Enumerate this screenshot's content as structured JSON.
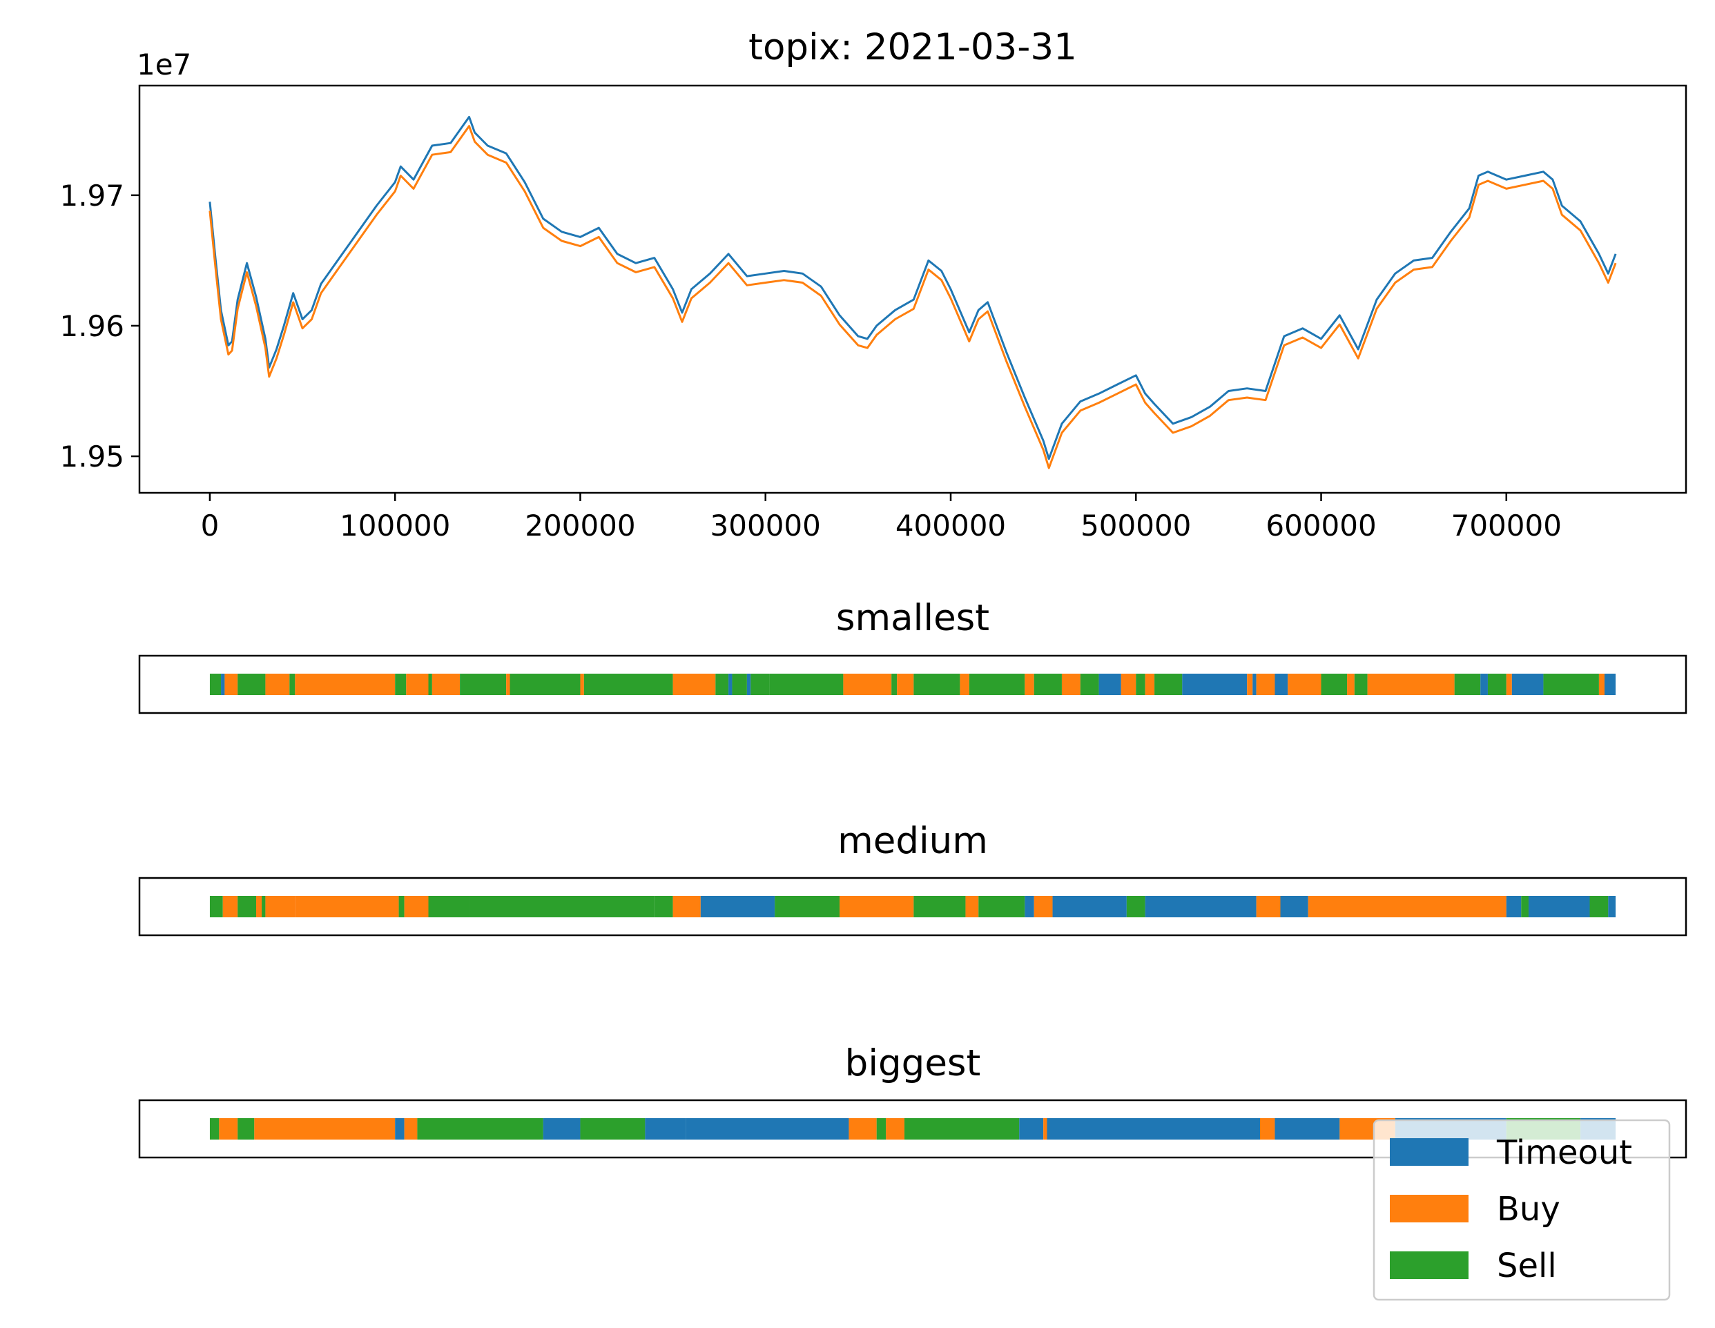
{
  "colors": {
    "timeout": "#1f77b4",
    "buy": "#ff7f0e",
    "sell": "#2ca02c"
  },
  "chart_data": [
    {
      "type": "line",
      "title": "topix: 2021-03-31",
      "offset_label": "1e7",
      "xlim": [
        -38000,
        797000
      ],
      "ylim": [
        1.9472,
        1.9784
      ],
      "xticks": [
        0,
        100000,
        200000,
        300000,
        400000,
        500000,
        600000,
        700000
      ],
      "xtick_labels": [
        "0",
        "100000",
        "200000",
        "300000",
        "400000",
        "500000",
        "600000",
        "700000"
      ],
      "yticks": [
        1.95,
        1.96,
        1.97
      ],
      "ytick_labels": [
        "1.95",
        "1.96",
        "1.97"
      ],
      "series": [
        {
          "color_key": "timeout",
          "x": [
            0,
            3000,
            6000,
            10000,
            12000,
            15000,
            20000,
            25000,
            30000,
            32000,
            36000,
            40000,
            45000,
            50000,
            55000,
            60000,
            70000,
            80000,
            90000,
            100000,
            103000,
            110000,
            115000,
            120000,
            130000,
            140000,
            143000,
            150000,
            160000,
            170000,
            180000,
            190000,
            200000,
            210000,
            220000,
            230000,
            240000,
            250000,
            255000,
            260000,
            270000,
            280000,
            290000,
            300000,
            310000,
            320000,
            330000,
            340000,
            350000,
            355000,
            360000,
            370000,
            380000,
            388000,
            395000,
            400000,
            410000,
            415000,
            420000,
            430000,
            440000,
            450000,
            453000,
            460000,
            470000,
            480000,
            490000,
            500000,
            505000,
            510000,
            520000,
            530000,
            540000,
            550000,
            560000,
            570000,
            580000,
            590000,
            600000,
            610000,
            620000,
            630000,
            640000,
            650000,
            660000,
            670000,
            680000,
            685000,
            690000,
            700000,
            710000,
            720000,
            725000,
            730000,
            740000,
            750000,
            755000,
            759000
          ],
          "values": [
            1.9695,
            1.9652,
            1.9612,
            1.9585,
            1.9588,
            1.962,
            1.9648,
            1.9622,
            1.959,
            1.9568,
            1.9582,
            1.96,
            1.9625,
            1.9605,
            1.9612,
            1.9632,
            1.9652,
            1.9672,
            1.9692,
            1.971,
            1.9722,
            1.9712,
            1.9725,
            1.9738,
            1.974,
            1.976,
            1.9748,
            1.9738,
            1.9732,
            1.971,
            1.9682,
            1.9672,
            1.9668,
            1.9675,
            1.9655,
            1.9648,
            1.9652,
            1.9628,
            1.961,
            1.9628,
            1.964,
            1.9655,
            1.9638,
            1.964,
            1.9642,
            1.964,
            1.963,
            1.9608,
            1.9592,
            1.959,
            1.96,
            1.9612,
            1.962,
            1.965,
            1.9642,
            1.9628,
            1.9595,
            1.9612,
            1.9618,
            1.958,
            1.9545,
            1.9512,
            1.9498,
            1.9525,
            1.9542,
            1.9548,
            1.9555,
            1.9562,
            1.9548,
            1.954,
            1.9525,
            1.953,
            1.9538,
            1.955,
            1.9552,
            1.955,
            1.9592,
            1.9598,
            1.959,
            1.9608,
            1.9582,
            1.962,
            1.964,
            1.965,
            1.9652,
            1.9672,
            1.969,
            1.9715,
            1.9718,
            1.9712,
            1.9715,
            1.9718,
            1.9712,
            1.9692,
            1.968,
            1.9655,
            1.964,
            1.9655
          ]
        },
        {
          "color_key": "buy",
          "x": [
            0,
            3000,
            6000,
            10000,
            12000,
            15000,
            20000,
            25000,
            30000,
            32000,
            36000,
            40000,
            45000,
            50000,
            55000,
            60000,
            70000,
            80000,
            90000,
            100000,
            103000,
            110000,
            115000,
            120000,
            130000,
            140000,
            143000,
            150000,
            160000,
            170000,
            180000,
            190000,
            200000,
            210000,
            220000,
            230000,
            240000,
            250000,
            255000,
            260000,
            270000,
            280000,
            290000,
            300000,
            310000,
            320000,
            330000,
            340000,
            350000,
            355000,
            360000,
            370000,
            380000,
            388000,
            395000,
            400000,
            410000,
            415000,
            420000,
            430000,
            440000,
            450000,
            453000,
            460000,
            470000,
            480000,
            490000,
            500000,
            505000,
            510000,
            520000,
            530000,
            540000,
            550000,
            560000,
            570000,
            580000,
            590000,
            600000,
            610000,
            620000,
            630000,
            640000,
            650000,
            660000,
            670000,
            680000,
            685000,
            690000,
            700000,
            710000,
            720000,
            725000,
            730000,
            740000,
            750000,
            755000,
            759000
          ],
          "values": [
            1.9688,
            1.9645,
            1.9605,
            1.9578,
            1.9581,
            1.9613,
            1.9641,
            1.9615,
            1.9583,
            1.9561,
            1.9575,
            1.9593,
            1.9618,
            1.9598,
            1.9605,
            1.9625,
            1.9645,
            1.9665,
            1.9685,
            1.9703,
            1.9715,
            1.9705,
            1.9718,
            1.9731,
            1.9733,
            1.9753,
            1.9741,
            1.9731,
            1.9725,
            1.9703,
            1.9675,
            1.9665,
            1.9661,
            1.9668,
            1.9648,
            1.9641,
            1.9645,
            1.9621,
            1.9603,
            1.9621,
            1.9633,
            1.9648,
            1.9631,
            1.9633,
            1.9635,
            1.9633,
            1.9623,
            1.9601,
            1.9585,
            1.9583,
            1.9593,
            1.9605,
            1.9613,
            1.9643,
            1.9635,
            1.9621,
            1.9588,
            1.9605,
            1.9611,
            1.9573,
            1.9538,
            1.9505,
            1.9491,
            1.9518,
            1.9535,
            1.9541,
            1.9548,
            1.9555,
            1.9541,
            1.9533,
            1.9518,
            1.9523,
            1.9531,
            1.9543,
            1.9545,
            1.9543,
            1.9585,
            1.9591,
            1.9583,
            1.9601,
            1.9575,
            1.9613,
            1.9633,
            1.9643,
            1.9645,
            1.9665,
            1.9683,
            1.9708,
            1.9711,
            1.9705,
            1.9708,
            1.9711,
            1.9705,
            1.9685,
            1.9673,
            1.9648,
            1.9633,
            1.9648
          ]
        }
      ]
    },
    {
      "type": "bar",
      "title": "smallest",
      "xlim": [
        -38000,
        797000
      ],
      "segments": [
        [
          0,
          6000,
          "sell"
        ],
        [
          6000,
          8000,
          "timeout"
        ],
        [
          8000,
          15000,
          "buy"
        ],
        [
          15000,
          30000,
          "sell"
        ],
        [
          30000,
          43000,
          "buy"
        ],
        [
          43000,
          46000,
          "sell"
        ],
        [
          46000,
          100000,
          "buy"
        ],
        [
          100000,
          106000,
          "sell"
        ],
        [
          106000,
          118000,
          "buy"
        ],
        [
          118000,
          120000,
          "sell"
        ],
        [
          120000,
          135000,
          "buy"
        ],
        [
          135000,
          160000,
          "sell"
        ],
        [
          160000,
          162000,
          "buy"
        ],
        [
          162000,
          200000,
          "sell"
        ],
        [
          200000,
          202000,
          "buy"
        ],
        [
          202000,
          250000,
          "sell"
        ],
        [
          250000,
          273000,
          "buy"
        ],
        [
          273000,
          280000,
          "sell"
        ],
        [
          280000,
          282000,
          "timeout"
        ],
        [
          282000,
          290000,
          "sell"
        ],
        [
          290000,
          292000,
          "timeout"
        ],
        [
          292000,
          302000,
          "sell"
        ],
        [
          302000,
          342000,
          "sell"
        ],
        [
          342000,
          368000,
          "buy"
        ],
        [
          368000,
          371000,
          "sell"
        ],
        [
          371000,
          380000,
          "buy"
        ],
        [
          380000,
          405000,
          "sell"
        ],
        [
          405000,
          410000,
          "buy"
        ],
        [
          410000,
          440000,
          "sell"
        ],
        [
          440000,
          445000,
          "buy"
        ],
        [
          445000,
          460000,
          "sell"
        ],
        [
          460000,
          470000,
          "buy"
        ],
        [
          470000,
          480000,
          "sell"
        ],
        [
          480000,
          492000,
          "timeout"
        ],
        [
          492000,
          500000,
          "buy"
        ],
        [
          500000,
          505000,
          "sell"
        ],
        [
          505000,
          510000,
          "buy"
        ],
        [
          510000,
          525000,
          "sell"
        ],
        [
          525000,
          560000,
          "timeout"
        ],
        [
          560000,
          563000,
          "buy"
        ],
        [
          563000,
          565000,
          "timeout"
        ],
        [
          565000,
          575000,
          "buy"
        ],
        [
          575000,
          582000,
          "timeout"
        ],
        [
          582000,
          600000,
          "buy"
        ],
        [
          600000,
          614000,
          "sell"
        ],
        [
          614000,
          618000,
          "buy"
        ],
        [
          618000,
          625000,
          "sell"
        ],
        [
          625000,
          672000,
          "buy"
        ],
        [
          672000,
          686000,
          "sell"
        ],
        [
          686000,
          690000,
          "timeout"
        ],
        [
          690000,
          700000,
          "sell"
        ],
        [
          700000,
          703000,
          "buy"
        ],
        [
          703000,
          720000,
          "timeout"
        ],
        [
          720000,
          750000,
          "sell"
        ],
        [
          750000,
          753000,
          "buy"
        ],
        [
          753000,
          759000,
          "timeout"
        ]
      ]
    },
    {
      "type": "bar",
      "title": "medium",
      "xlim": [
        -38000,
        797000
      ],
      "segments": [
        [
          0,
          7000,
          "sell"
        ],
        [
          7000,
          15000,
          "buy"
        ],
        [
          15000,
          25000,
          "sell"
        ],
        [
          25000,
          28000,
          "buy"
        ],
        [
          28000,
          30000,
          "sell"
        ],
        [
          30000,
          46000,
          "buy"
        ],
        [
          46000,
          102000,
          "buy"
        ],
        [
          102000,
          105000,
          "sell"
        ],
        [
          105000,
          118000,
          "buy"
        ],
        [
          118000,
          140000,
          "sell"
        ],
        [
          140000,
          240000,
          "sell"
        ],
        [
          240000,
          250000,
          "sell"
        ],
        [
          250000,
          265000,
          "buy"
        ],
        [
          265000,
          305000,
          "timeout"
        ],
        [
          305000,
          340000,
          "sell"
        ],
        [
          340000,
          380000,
          "buy"
        ],
        [
          380000,
          408000,
          "sell"
        ],
        [
          408000,
          415000,
          "buy"
        ],
        [
          415000,
          440000,
          "sell"
        ],
        [
          440000,
          445000,
          "timeout"
        ],
        [
          445000,
          455000,
          "buy"
        ],
        [
          455000,
          495000,
          "timeout"
        ],
        [
          495000,
          505000,
          "sell"
        ],
        [
          505000,
          565000,
          "timeout"
        ],
        [
          565000,
          578000,
          "buy"
        ],
        [
          578000,
          593000,
          "timeout"
        ],
        [
          593000,
          700000,
          "buy"
        ],
        [
          700000,
          708000,
          "timeout"
        ],
        [
          708000,
          712000,
          "sell"
        ],
        [
          712000,
          745000,
          "timeout"
        ],
        [
          745000,
          755000,
          "sell"
        ],
        [
          755000,
          759000,
          "timeout"
        ]
      ]
    },
    {
      "type": "bar",
      "title": "biggest",
      "xlim": [
        -38000,
        797000
      ],
      "segments": [
        [
          0,
          5000,
          "sell"
        ],
        [
          5000,
          15000,
          "buy"
        ],
        [
          15000,
          24000,
          "sell"
        ],
        [
          24000,
          100000,
          "buy"
        ],
        [
          100000,
          105000,
          "timeout"
        ],
        [
          105000,
          112000,
          "buy"
        ],
        [
          112000,
          180000,
          "sell"
        ],
        [
          180000,
          200000,
          "timeout"
        ],
        [
          200000,
          235000,
          "sell"
        ],
        [
          235000,
          257000,
          "timeout"
        ],
        [
          257000,
          345000,
          "timeout"
        ],
        [
          345000,
          360000,
          "buy"
        ],
        [
          360000,
          365000,
          "sell"
        ],
        [
          365000,
          375000,
          "buy"
        ],
        [
          375000,
          437000,
          "sell"
        ],
        [
          437000,
          450000,
          "timeout"
        ],
        [
          450000,
          452000,
          "buy"
        ],
        [
          452000,
          567000,
          "timeout"
        ],
        [
          567000,
          575000,
          "buy"
        ],
        [
          575000,
          610000,
          "timeout"
        ],
        [
          610000,
          640000,
          "buy"
        ],
        [
          640000,
          700000,
          "timeout"
        ],
        [
          700000,
          740000,
          "sell"
        ],
        [
          740000,
          759000,
          "timeout"
        ]
      ]
    }
  ],
  "legend": {
    "placement": "lower-right",
    "entries": [
      {
        "label": "Timeout",
        "color_key": "timeout"
      },
      {
        "label": "Buy",
        "color_key": "buy"
      },
      {
        "label": "Sell",
        "color_key": "sell"
      }
    ]
  }
}
